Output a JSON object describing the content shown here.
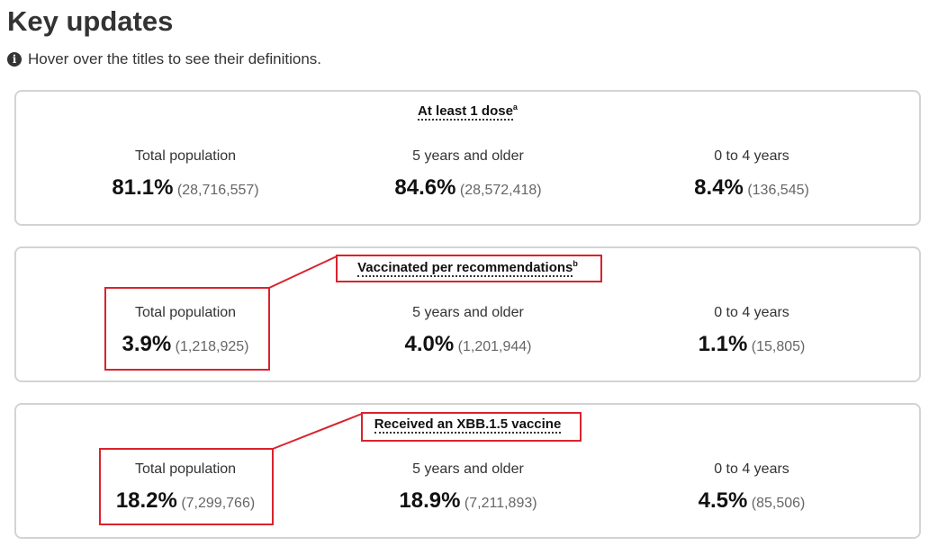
{
  "header": {
    "title": "Key updates",
    "hint": "Hover over the titles to see their definitions.",
    "hint_icon": "info-circle-icon"
  },
  "cards": [
    {
      "title": "At least 1 dose",
      "footnote": "a",
      "columns": [
        {
          "label": "Total population",
          "percent": "81.1%",
          "count": "(28,716,557)"
        },
        {
          "label": "5 years and older",
          "percent": "84.6%",
          "count": "(28,572,418)"
        },
        {
          "label": "0 to 4 years",
          "percent": "8.4%",
          "count": "(136,545)"
        }
      ]
    },
    {
      "title": "Vaccinated per recommendations",
      "footnote": "b",
      "columns": [
        {
          "label": "Total population",
          "percent": "3.9%",
          "count": "(1,218,925)"
        },
        {
          "label": "5 years and older",
          "percent": "4.0%",
          "count": "(1,201,944)"
        },
        {
          "label": "0 to 4 years",
          "percent": "1.1%",
          "count": "(15,805)"
        }
      ]
    },
    {
      "title": "Received an XBB.1.5 vaccine",
      "footnote": "",
      "columns": [
        {
          "label": "Total population",
          "percent": "18.2%",
          "count": "(7,299,766)"
        },
        {
          "label": "5 years and older",
          "percent": "18.9%",
          "count": "(7,211,893)"
        },
        {
          "label": "0 to 4 years",
          "percent": "4.5%",
          "count": "(85,506)"
        }
      ]
    }
  ],
  "colors": {
    "annotation": "#d9232d",
    "card_border": "#d3d3d3"
  }
}
